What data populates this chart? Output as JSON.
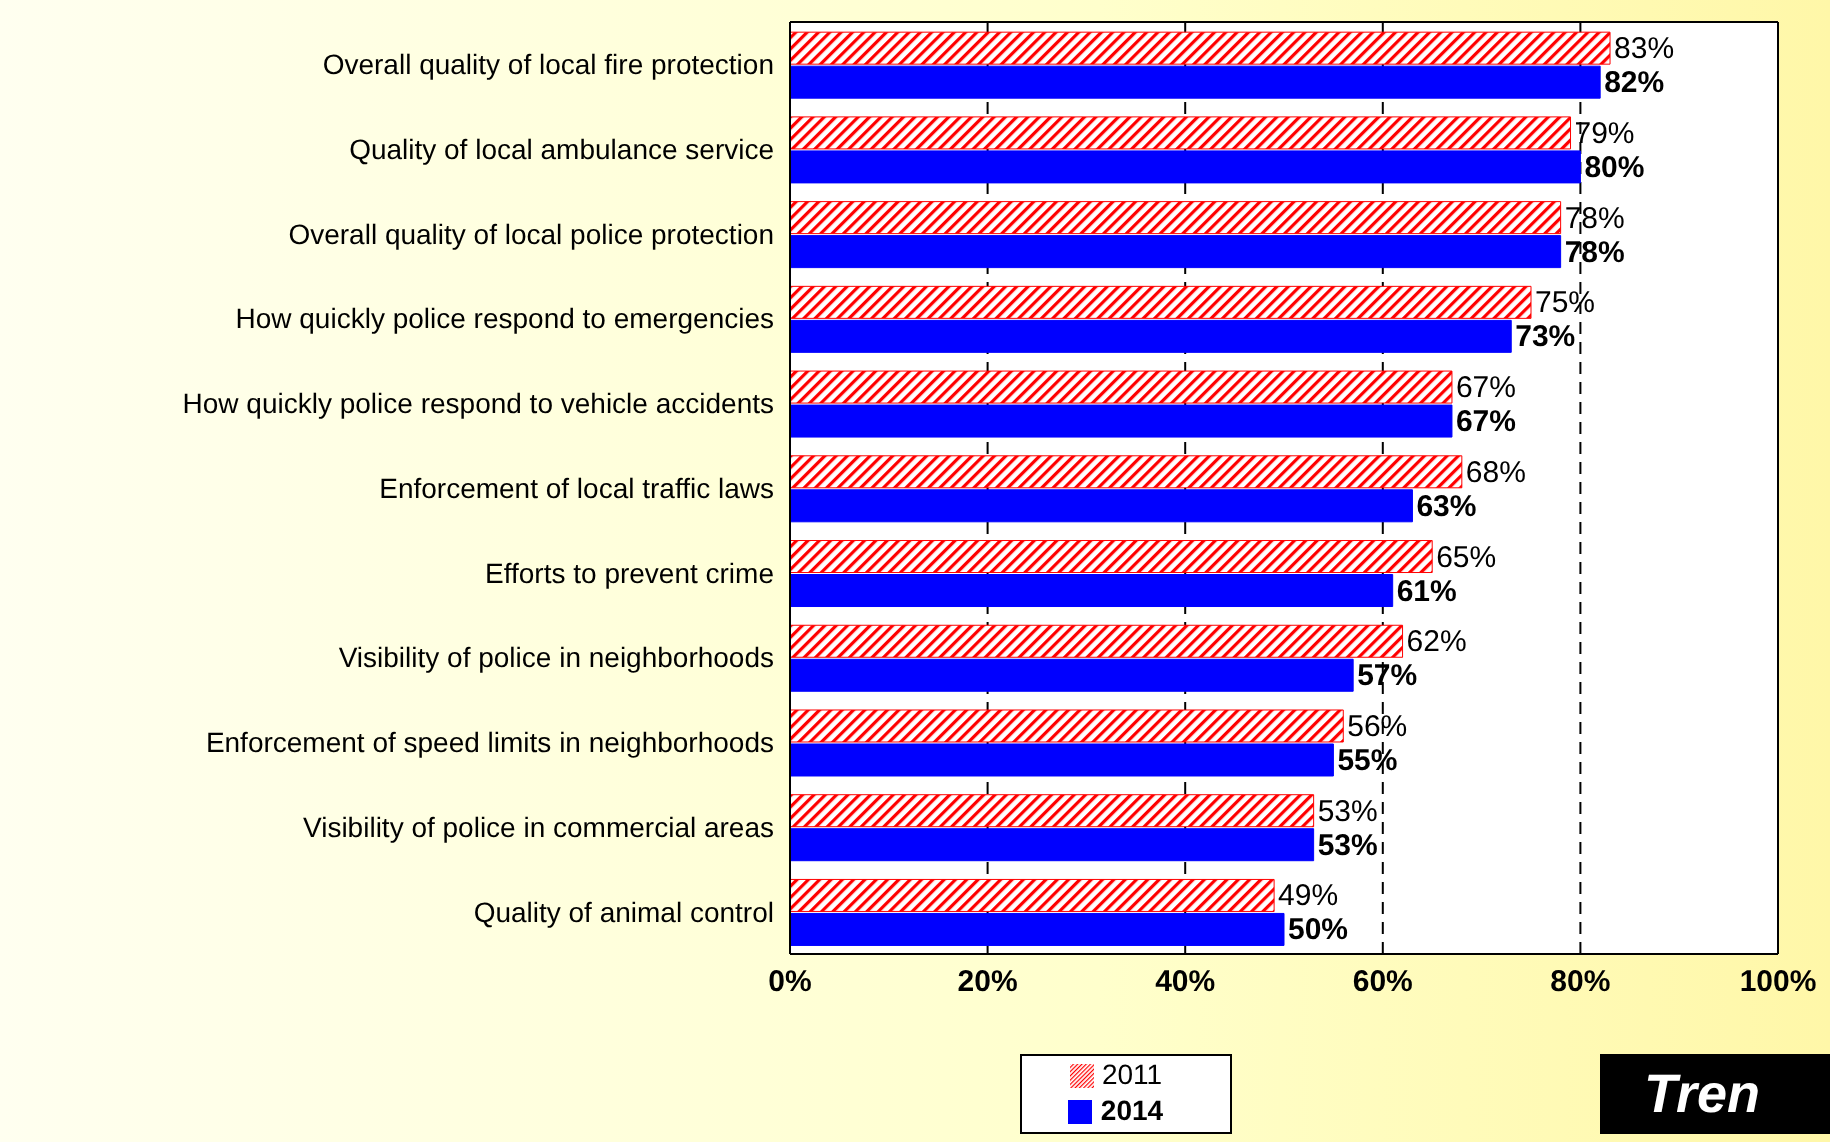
{
  "chart_data": {
    "type": "bar",
    "orientation": "horizontal",
    "categories": [
      "Overall quality of local fire protection",
      "Quality of local ambulance service",
      "Overall quality of local police protection",
      "How quickly police respond to emergencies",
      "How quickly police respond to vehicle accidents",
      "Enforcement of local traffic laws",
      "Efforts to prevent crime",
      "Visibility of police in neighborhoods",
      "Enforcement of speed limits in neighborhoods",
      "Visibility of police in commercial areas",
      "Quality of animal control"
    ],
    "series": [
      {
        "name": "2011",
        "color": "#ff0000",
        "values": [
          83,
          79,
          78,
          75,
          67,
          68,
          65,
          62,
          56,
          53,
          49
        ],
        "value_labels": [
          "83%",
          "79%",
          "78%",
          "75%",
          "67%",
          "68%",
          "65%",
          "62%",
          "56%",
          "53%",
          "49%"
        ]
      },
      {
        "name": "2014",
        "color": "#0000ff",
        "values": [
          82,
          80,
          78,
          73,
          67,
          63,
          61,
          57,
          55,
          53,
          50
        ],
        "value_labels": [
          "82%",
          "80%",
          "78%",
          "73%",
          "67%",
          "63%",
          "61%",
          "57%",
          "55%",
          "53%",
          "50%"
        ]
      }
    ],
    "xlim": [
      0,
      100
    ],
    "xticks": [
      {
        "value": 0,
        "label": "0%"
      },
      {
        "value": 20,
        "label": "20%"
      },
      {
        "value": 40,
        "label": "40%"
      },
      {
        "value": 60,
        "label": "60%"
      },
      {
        "value": 80,
        "label": "80%"
      },
      {
        "value": 100,
        "label": "100%"
      }
    ],
    "grid": "x",
    "legend": "bottom",
    "annotations": [
      "Tren"
    ]
  }
}
